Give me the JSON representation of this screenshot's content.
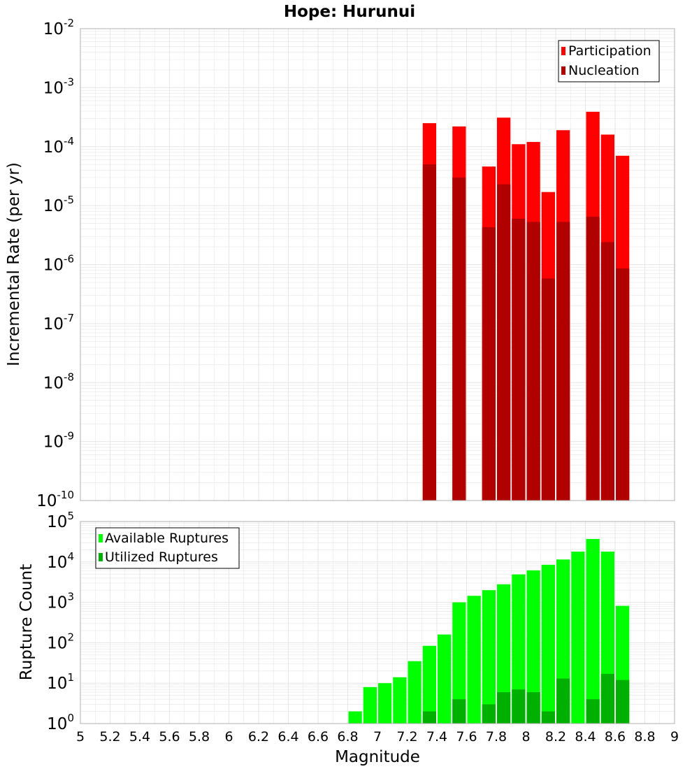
{
  "title": "Hope: Hurunui",
  "x_axis_label": "Magnitude",
  "x_ticks": [
    "5",
    "5.2",
    "5.4",
    "5.6",
    "5.8",
    "6",
    "6.2",
    "6.4",
    "6.6",
    "6.8",
    "7",
    "7.2",
    "7.4",
    "7.6",
    "7.8",
    "8",
    "8.2",
    "8.4",
    "8.6",
    "8.8",
    "9"
  ],
  "colors": {
    "participation": "#ff0000",
    "nucleation": "#b00000",
    "available": "#00ff00",
    "utilized": "#00b000",
    "grid": "#e6e6e6",
    "frame": "#b0b0b0"
  },
  "chart_data": [
    {
      "type": "bar",
      "scale": "log",
      "ylabel": "Incremental Rate (per yr)",
      "xlabel": "",
      "xlim": [
        5,
        9
      ],
      "ylim_exp": [
        -10,
        -2
      ],
      "y_tick_exponents": [
        "-10",
        "-9",
        "-8",
        "-7",
        "-6",
        "-5",
        "-4",
        "-3",
        "-2"
      ],
      "legend_position": "top-right",
      "x": [
        7.35,
        7.55,
        7.75,
        7.85,
        7.95,
        8.05,
        8.15,
        8.25,
        8.45,
        8.55,
        8.65
      ],
      "series": [
        {
          "name": "Participation",
          "values": [
            0.00025,
            0.00022,
            4.6e-05,
            0.00031,
            0.00011,
            0.00012,
            1.7e-05,
            0.00019,
            0.00039,
            0.00016,
            7e-05
          ]
        },
        {
          "name": "Nucleation",
          "values": [
            5e-05,
            3e-05,
            4.3e-06,
            2.3e-05,
            6e-06,
            5.3e-06,
            5.8e-07,
            5.3e-06,
            6.5e-06,
            2.4e-06,
            8.6e-07
          ]
        }
      ]
    },
    {
      "type": "bar",
      "scale": "log",
      "ylabel": "Rupture Count",
      "xlabel": "Magnitude",
      "xlim": [
        5,
        9
      ],
      "ylim_exp": [
        0,
        5
      ],
      "y_tick_exponents": [
        "0",
        "1",
        "2",
        "3",
        "4",
        "5"
      ],
      "legend_position": "top-left",
      "x": [
        6.65,
        6.85,
        6.95,
        7.05,
        7.15,
        7.25,
        7.35,
        7.45,
        7.55,
        7.65,
        7.75,
        7.85,
        7.95,
        8.05,
        8.15,
        8.25,
        8.35,
        8.45,
        8.55,
        8.65
      ],
      "series": [
        {
          "name": "Available Ruptures",
          "values": [
            1,
            2,
            8,
            10,
            14,
            35,
            84,
            160,
            1000,
            1450,
            2000,
            2800,
            4900,
            6200,
            8500,
            11500,
            18000,
            37000,
            18000,
            820
          ]
        },
        {
          "name": "Utilized Ruptures",
          "values": [
            0,
            0,
            0,
            0,
            0,
            0,
            2,
            0,
            4,
            0,
            3,
            6,
            7,
            6,
            2,
            13,
            0,
            4,
            17,
            12
          ]
        }
      ]
    }
  ]
}
